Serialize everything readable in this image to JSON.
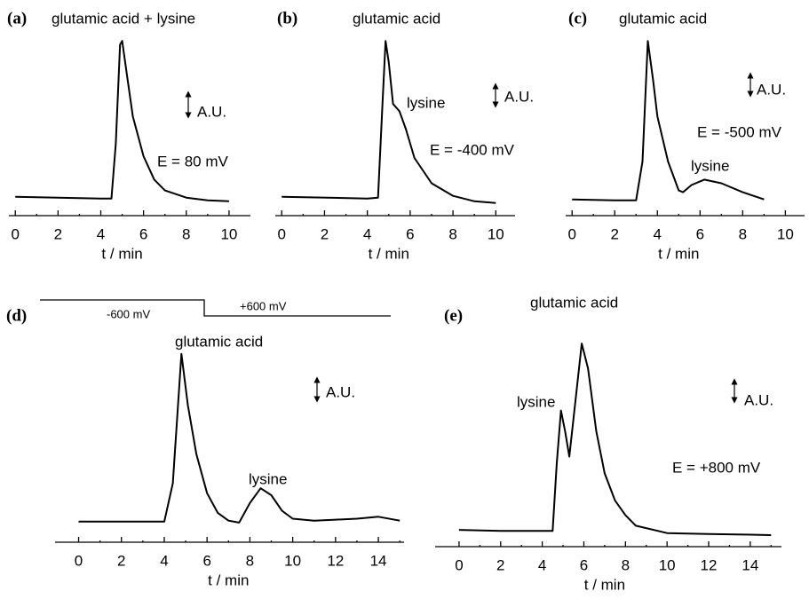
{
  "chart_data": [
    {
      "type": "line",
      "panel_label": "(a)",
      "annotations": [
        "glutamic acid + lysine",
        "A.U.",
        "E = 80 mV"
      ],
      "x": [
        0,
        2,
        4,
        4.5,
        4.7,
        4.9,
        5.0,
        5.2,
        5.5,
        6,
        6.5,
        7,
        8,
        9,
        10
      ],
      "values": [
        10.5,
        10,
        9.5,
        9.5,
        40,
        95,
        97,
        80,
        55,
        33,
        20,
        14,
        10,
        8.5,
        8
      ],
      "xlim": [
        -0.3,
        11
      ],
      "xticks": [
        0,
        2,
        4,
        6,
        8,
        10
      ],
      "minor_xticks": [
        1,
        3,
        5,
        7,
        9
      ],
      "ylim": [
        0,
        100
      ],
      "xlabel": "t / min",
      "color": "#000000"
    },
    {
      "type": "line",
      "panel_label": "(b)",
      "annotations": [
        "glutamic acid",
        "lysine",
        "A.U.",
        "E = -400 mV"
      ],
      "x": [
        0,
        4,
        4.5,
        4.7,
        4.85,
        5.0,
        5.2,
        5.5,
        5.8,
        6.2,
        7,
        8,
        9,
        10
      ],
      "values": [
        10.5,
        9.5,
        10,
        60,
        97,
        85,
        62,
        58,
        48,
        32,
        18,
        11,
        8,
        7
      ],
      "xlim": [
        -0.3,
        10.9
      ],
      "xticks": [
        0,
        2,
        4,
        6,
        8,
        10
      ],
      "minor_xticks": [
        1,
        3,
        5,
        7,
        9
      ],
      "ylim": [
        0,
        100
      ],
      "xlabel": "t / min",
      "color": "#000000"
    },
    {
      "type": "line",
      "panel_label": "(c)",
      "annotations": [
        "glutamic acid",
        "A.U.",
        "E = -500 mV",
        "lysine"
      ],
      "x": [
        0,
        2,
        3,
        3.3,
        3.55,
        3.8,
        4,
        4.5,
        5,
        5.2,
        5.6,
        6.2,
        7,
        8,
        9
      ],
      "values": [
        9,
        8.5,
        8.5,
        30,
        97,
        75,
        55,
        30,
        14,
        13,
        17,
        20,
        18,
        13,
        9
      ],
      "xlim": [
        -0.3,
        10.9
      ],
      "xticks": [
        0,
        2,
        4,
        6,
        8,
        10
      ],
      "minor_xticks": [
        1,
        3,
        5,
        7,
        9
      ],
      "ylim": [
        0,
        100
      ],
      "xlabel": "t / min",
      "color": "#000000"
    },
    {
      "type": "line",
      "panel_label": "(d)",
      "annotations": [
        "-600 mV",
        "+600 mV",
        "glutamic acid",
        "A.U.",
        "lysine"
      ],
      "x": [
        0,
        2,
        4,
        4.4,
        4.8,
        5.1,
        5.5,
        6,
        6.5,
        7,
        7.5,
        8,
        8.5,
        9,
        9.5,
        10,
        11,
        12,
        13,
        14,
        15
      ],
      "values": [
        10.5,
        10.5,
        10.5,
        30,
        96,
        70,
        45,
        25,
        15,
        11,
        10,
        20,
        27.5,
        24,
        16,
        12,
        11,
        11.5,
        12,
        13,
        11
      ],
      "xlim": [
        -1.1,
        15.2
      ],
      "xticks": [
        0,
        2,
        4,
        6,
        8,
        10,
        12,
        14
      ],
      "minor_xticks": [
        1,
        3,
        5,
        7,
        9,
        11,
        13,
        15
      ],
      "ylim": [
        0,
        100
      ],
      "xlabel": "t / min",
      "color": "#000000"
    },
    {
      "type": "line",
      "panel_label": "(e)",
      "annotations": [
        "glutamic acid",
        "lysine",
        "A.U.",
        "E = +800 mV"
      ],
      "x": [
        0,
        2,
        4,
        4.5,
        4.7,
        4.9,
        5.1,
        5.3,
        5.6,
        5.9,
        6.2,
        6.6,
        7,
        7.5,
        8,
        8.5,
        10,
        12,
        14,
        15
      ],
      "values": [
        8,
        7.5,
        7.5,
        7.5,
        40,
        65,
        55,
        43,
        70,
        97,
        85,
        55,
        35,
        22,
        15,
        10,
        6.5,
        6,
        5.7,
        5.5
      ],
      "xlim": [
        -1.15,
        15.5
      ],
      "xticks": [
        0,
        2,
        4,
        6,
        8,
        10,
        12,
        14
      ],
      "minor_xticks": [
        1,
        3,
        5,
        7,
        9,
        11,
        13,
        15
      ],
      "ylim": [
        0,
        100
      ],
      "xlabel": "t / min",
      "color": "#000000"
    }
  ]
}
